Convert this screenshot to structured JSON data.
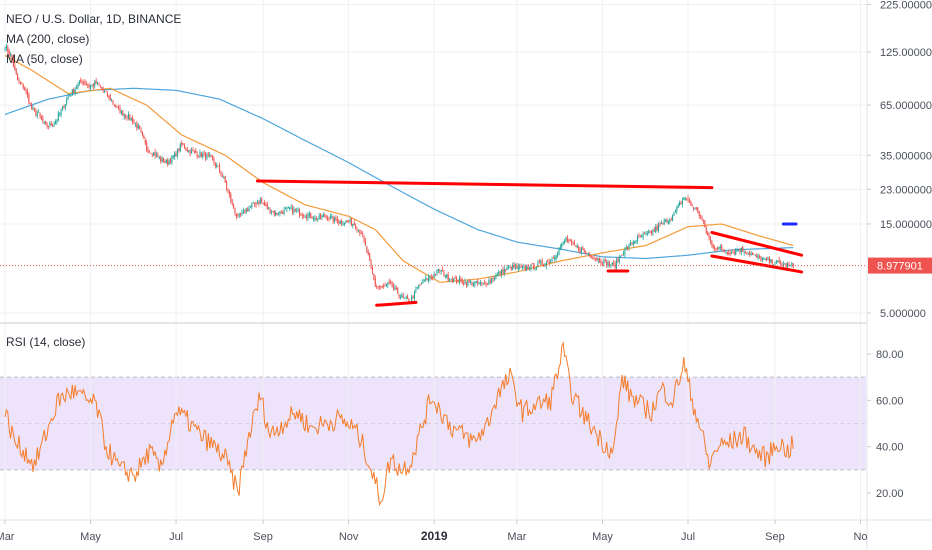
{
  "legend": {
    "title": "NEO / U.S. Dollar, 1D, BINANCE",
    "ma200": "MA (200, close)",
    "ma50": "MA (50, close)",
    "rsi": "RSI (14, close)"
  },
  "last_price_label": "8.977901",
  "colors": {
    "up": "#26a69a",
    "down": "#ef5350",
    "ma200": "#4ea6dc",
    "ma50": "#f39a38",
    "rsi": "#f57c2a",
    "rsi_band": "#ede4fb",
    "trend": "#ff0000",
    "target": "#1a2bff"
  },
  "x_axis_labels": [
    {
      "label": "Mar",
      "day": 0
    },
    {
      "label": "May",
      "day": 61
    },
    {
      "label": "Jul",
      "day": 122
    },
    {
      "label": "Sep",
      "day": 184
    },
    {
      "label": "Nov",
      "day": 245
    },
    {
      "label": "2019",
      "day": 306,
      "year": true
    },
    {
      "label": "Mar",
      "day": 365
    },
    {
      "label": "May",
      "day": 426
    },
    {
      "label": "Jul",
      "day": 487
    },
    {
      "label": "Sep",
      "day": 549
    },
    {
      "label": "No",
      "day": 610
    }
  ],
  "chart_data": [
    {
      "type": "candlestick",
      "title": "NEO / U.S. Dollar, 1D, BINANCE",
      "y_scale": "log",
      "ylim": [
        4.0,
        225.0
      ],
      "y_ticks": [
        {
          "label": "225.000000",
          "value": 225
        },
        {
          "label": "125.000000",
          "value": 125
        },
        {
          "label": "65.000000",
          "value": 65
        },
        {
          "label": "35.000000",
          "value": 35
        },
        {
          "label": "23.000000",
          "value": 23
        },
        {
          "label": "15.000000",
          "value": 15
        },
        {
          "label": "5.000000",
          "value": 5
        }
      ],
      "last_price": 8.977901,
      "price_anchors": [
        [
          "2018-03-01",
          135
        ],
        [
          "2018-03-05",
          120
        ],
        [
          "2018-03-10",
          88
        ],
        [
          "2018-03-15",
          80
        ],
        [
          "2018-03-20",
          62
        ],
        [
          "2018-03-25",
          58
        ],
        [
          "2018-03-30",
          50
        ],
        [
          "2018-04-05",
          52
        ],
        [
          "2018-04-10",
          60
        ],
        [
          "2018-04-15",
          72
        ],
        [
          "2018-04-20",
          80
        ],
        [
          "2018-04-25",
          88
        ],
        [
          "2018-04-30",
          82
        ],
        [
          "2018-05-05",
          85
        ],
        [
          "2018-05-10",
          78
        ],
        [
          "2018-05-15",
          70
        ],
        [
          "2018-05-20",
          62
        ],
        [
          "2018-05-25",
          58
        ],
        [
          "2018-05-30",
          55
        ],
        [
          "2018-06-05",
          48
        ],
        [
          "2018-06-10",
          38
        ],
        [
          "2018-06-15",
          36
        ],
        [
          "2018-06-20",
          33
        ],
        [
          "2018-06-25",
          32
        ],
        [
          "2018-06-30",
          35
        ],
        [
          "2018-07-05",
          40
        ],
        [
          "2018-07-10",
          37
        ],
        [
          "2018-07-15",
          36
        ],
        [
          "2018-07-20",
          35
        ],
        [
          "2018-07-25",
          34
        ],
        [
          "2018-07-31",
          30
        ],
        [
          "2018-08-05",
          25
        ],
        [
          "2018-08-10",
          19
        ],
        [
          "2018-08-14",
          16
        ],
        [
          "2018-08-20",
          18
        ],
        [
          "2018-08-25",
          19
        ],
        [
          "2018-08-30",
          20
        ],
        [
          "2018-09-05",
          18
        ],
        [
          "2018-09-10",
          17
        ],
        [
          "2018-09-15",
          17.5
        ],
        [
          "2018-09-20",
          18
        ],
        [
          "2018-09-25",
          17.5
        ],
        [
          "2018-09-30",
          17
        ],
        [
          "2018-10-05",
          16.5
        ],
        [
          "2018-10-10",
          16
        ],
        [
          "2018-10-15",
          16.5
        ],
        [
          "2018-10-20",
          16
        ],
        [
          "2018-10-25",
          15.5
        ],
        [
          "2018-10-30",
          15.5
        ],
        [
          "2018-11-05",
          15
        ],
        [
          "2018-11-10",
          13.5
        ],
        [
          "2018-11-15",
          10
        ],
        [
          "2018-11-20",
          7
        ],
        [
          "2018-11-25",
          6.8
        ],
        [
          "2018-11-30",
          7.2
        ],
        [
          "2018-12-05",
          6.5
        ],
        [
          "2018-12-10",
          6
        ],
        [
          "2018-12-15",
          5.8
        ],
        [
          "2018-12-20",
          6.8
        ],
        [
          "2018-12-25",
          7.5
        ],
        [
          "2018-12-30",
          7.8
        ],
        [
          "2019-01-05",
          8.5
        ],
        [
          "2019-01-10",
          7.8
        ],
        [
          "2019-01-15",
          7.5
        ],
        [
          "2019-01-20",
          7.4
        ],
        [
          "2019-01-25",
          7.3
        ],
        [
          "2019-01-30",
          7.2
        ],
        [
          "2019-02-05",
          7.1
        ],
        [
          "2019-02-10",
          7.5
        ],
        [
          "2019-02-15",
          8.0
        ],
        [
          "2019-02-20",
          8.5
        ],
        [
          "2019-02-25",
          8.8
        ],
        [
          "2019-03-05",
          8.6
        ],
        [
          "2019-03-10",
          8.8
        ],
        [
          "2019-03-15",
          9.0
        ],
        [
          "2019-03-20",
          9.2
        ],
        [
          "2019-03-25",
          9.5
        ],
        [
          "2019-03-31",
          11
        ],
        [
          "2019-04-05",
          12.5
        ],
        [
          "2019-04-10",
          11.5
        ],
        [
          "2019-04-15",
          11
        ],
        [
          "2019-04-20",
          10.5
        ],
        [
          "2019-04-25",
          10
        ],
        [
          "2019-04-30",
          9.5
        ],
        [
          "2019-05-05",
          9.2
        ],
        [
          "2019-05-10",
          9.0
        ],
        [
          "2019-05-15",
          10.5
        ],
        [
          "2019-05-20",
          11.5
        ],
        [
          "2019-05-25",
          12.5
        ],
        [
          "2019-05-31",
          13.0
        ],
        [
          "2019-06-05",
          13.5
        ],
        [
          "2019-06-10",
          14.5
        ],
        [
          "2019-06-15",
          15.5
        ],
        [
          "2019-06-20",
          16.5
        ],
        [
          "2019-06-25",
          19
        ],
        [
          "2019-06-29",
          21
        ],
        [
          "2019-07-03",
          19
        ],
        [
          "2019-07-08",
          17.5
        ],
        [
          "2019-07-12",
          15
        ],
        [
          "2019-07-15",
          13
        ],
        [
          "2019-07-18",
          11.5
        ],
        [
          "2019-07-22",
          11.2
        ],
        [
          "2019-07-27",
          10.8
        ],
        [
          "2019-08-01",
          10.5
        ],
        [
          "2019-08-06",
          11
        ],
        [
          "2019-08-11",
          10.8
        ],
        [
          "2019-08-16",
          10.2
        ],
        [
          "2019-08-21",
          9.8
        ],
        [
          "2019-08-26",
          9.5
        ],
        [
          "2019-08-31",
          9.3
        ],
        [
          "2019-09-05",
          9.2
        ],
        [
          "2019-09-09",
          9.0
        ],
        [
          "2019-09-14",
          8.98
        ]
      ],
      "ma200_anchors": [
        [
          "2018-03-01",
          58
        ],
        [
          "2018-04-01",
          70
        ],
        [
          "2018-05-01",
          78
        ],
        [
          "2018-06-01",
          80
        ],
        [
          "2018-07-01",
          78
        ],
        [
          "2018-08-01",
          70
        ],
        [
          "2018-09-01",
          55
        ],
        [
          "2018-10-01",
          42
        ],
        [
          "2018-11-01",
          32
        ],
        [
          "2018-12-01",
          24
        ],
        [
          "2019-01-01",
          18
        ],
        [
          "2019-02-01",
          14
        ],
        [
          "2019-03-01",
          12
        ],
        [
          "2019-04-01",
          11
        ],
        [
          "2019-05-01",
          10
        ],
        [
          "2019-06-01",
          9.8
        ],
        [
          "2019-07-01",
          10.2
        ],
        [
          "2019-08-01",
          10.9
        ],
        [
          "2019-09-14",
          11.2
        ]
      ],
      "ma50_anchors": [
        [
          "2018-03-01",
          120
        ],
        [
          "2018-03-20",
          100
        ],
        [
          "2018-04-15",
          75
        ],
        [
          "2018-05-15",
          80
        ],
        [
          "2018-06-10",
          65
        ],
        [
          "2018-07-05",
          45
        ],
        [
          "2018-08-05",
          35
        ],
        [
          "2018-09-01",
          25
        ],
        [
          "2018-10-01",
          19
        ],
        [
          "2018-11-01",
          16.5
        ],
        [
          "2018-11-20",
          14
        ],
        [
          "2018-12-10",
          9.5
        ],
        [
          "2019-01-05",
          7.3
        ],
        [
          "2019-02-01",
          7.6
        ],
        [
          "2019-03-01",
          8.3
        ],
        [
          "2019-04-01",
          9.5
        ],
        [
          "2019-05-01",
          10.5
        ],
        [
          "2019-06-01",
          11.5
        ],
        [
          "2019-07-01",
          14.5
        ],
        [
          "2019-07-25",
          15
        ],
        [
          "2019-08-20",
          13
        ],
        [
          "2019-09-14",
          11.5
        ]
      ]
    },
    {
      "type": "line",
      "title": "RSI (14, close)",
      "ylim": [
        10,
        90
      ],
      "band": [
        30,
        70
      ],
      "y_ticks": [
        {
          "label": "80.00",
          "value": 80
        },
        {
          "label": "60.00",
          "value": 60
        },
        {
          "label": "40.00",
          "value": 40
        },
        {
          "label": "20.00",
          "value": 20
        }
      ],
      "rsi_anchors": [
        [
          "2018-03-01",
          55
        ],
        [
          "2018-03-08",
          42
        ],
        [
          "2018-03-15",
          38
        ],
        [
          "2018-03-22",
          32
        ],
        [
          "2018-03-30",
          45
        ],
        [
          "2018-04-08",
          60
        ],
        [
          "2018-04-18",
          64
        ],
        [
          "2018-04-28",
          60
        ],
        [
          "2018-05-05",
          58
        ],
        [
          "2018-05-12",
          40
        ],
        [
          "2018-05-22",
          30
        ],
        [
          "2018-06-02",
          28
        ],
        [
          "2018-06-12",
          38
        ],
        [
          "2018-06-20",
          30
        ],
        [
          "2018-06-30",
          55
        ],
        [
          "2018-07-08",
          52
        ],
        [
          "2018-07-18",
          45
        ],
        [
          "2018-07-28",
          40
        ],
        [
          "2018-08-05",
          35
        ],
        [
          "2018-08-14",
          20
        ],
        [
          "2018-08-22",
          45
        ],
        [
          "2018-08-30",
          62
        ],
        [
          "2018-09-06",
          45
        ],
        [
          "2018-09-15",
          50
        ],
        [
          "2018-09-25",
          55
        ],
        [
          "2018-10-05",
          48
        ],
        [
          "2018-10-15",
          50
        ],
        [
          "2018-10-25",
          52
        ],
        [
          "2018-11-05",
          48
        ],
        [
          "2018-11-12",
          40
        ],
        [
          "2018-11-18",
          28
        ],
        [
          "2018-11-24",
          17
        ],
        [
          "2018-12-01",
          35
        ],
        [
          "2018-12-08",
          30
        ],
        [
          "2018-12-15",
          33
        ],
        [
          "2018-12-24",
          50
        ],
        [
          "2018-12-30",
          62
        ],
        [
          "2019-01-06",
          55
        ],
        [
          "2019-01-14",
          48
        ],
        [
          "2019-01-22",
          45
        ],
        [
          "2019-01-30",
          42
        ],
        [
          "2019-02-08",
          50
        ],
        [
          "2019-02-15",
          62
        ],
        [
          "2019-02-24",
          70
        ],
        [
          "2019-03-05",
          55
        ],
        [
          "2019-03-15",
          58
        ],
        [
          "2019-03-25",
          60
        ],
        [
          "2019-04-03",
          82
        ],
        [
          "2019-04-08",
          65
        ],
        [
          "2019-04-16",
          55
        ],
        [
          "2019-04-24",
          48
        ],
        [
          "2019-05-01",
          42
        ],
        [
          "2019-05-09",
          38
        ],
        [
          "2019-05-15",
          70
        ],
        [
          "2019-05-20",
          63
        ],
        [
          "2019-05-28",
          58
        ],
        [
          "2019-06-05",
          55
        ],
        [
          "2019-06-12",
          65
        ],
        [
          "2019-06-20",
          60
        ],
        [
          "2019-06-28",
          76
        ],
        [
          "2019-07-04",
          60
        ],
        [
          "2019-07-10",
          48
        ],
        [
          "2019-07-16",
          32
        ],
        [
          "2019-07-22",
          40
        ],
        [
          "2019-08-01",
          42
        ],
        [
          "2019-08-10",
          45
        ],
        [
          "2019-08-18",
          38
        ],
        [
          "2019-08-26",
          35
        ],
        [
          "2019-09-03",
          42
        ],
        [
          "2019-09-10",
          38
        ],
        [
          "2019-09-14",
          41
        ]
      ]
    }
  ],
  "drawings": [
    {
      "name": "resistance-line",
      "from": [
        "2018-08-28",
        25.5
      ],
      "to": [
        "2019-07-18",
        23.5
      ]
    },
    {
      "name": "support-line-2018-low",
      "from": [
        "2018-11-21",
        5.5
      ],
      "to": [
        "2018-12-19",
        5.7
      ]
    },
    {
      "name": "support-line-may-2019",
      "from": [
        "2019-05-05",
        8.4
      ],
      "to": [
        "2019-05-19",
        8.4
      ]
    },
    {
      "name": "wedge-upper-line",
      "from": [
        "2019-07-18",
        13.5
      ],
      "to": [
        "2019-09-20",
        10.2
      ]
    },
    {
      "name": "wedge-lower-line",
      "from": [
        "2019-07-18",
        10.1
      ],
      "to": [
        "2019-09-20",
        8.3
      ]
    },
    {
      "name": "target-marker",
      "from": [
        "2019-09-07",
        15.0
      ],
      "to": [
        "2019-09-16",
        15.0
      ]
    }
  ]
}
